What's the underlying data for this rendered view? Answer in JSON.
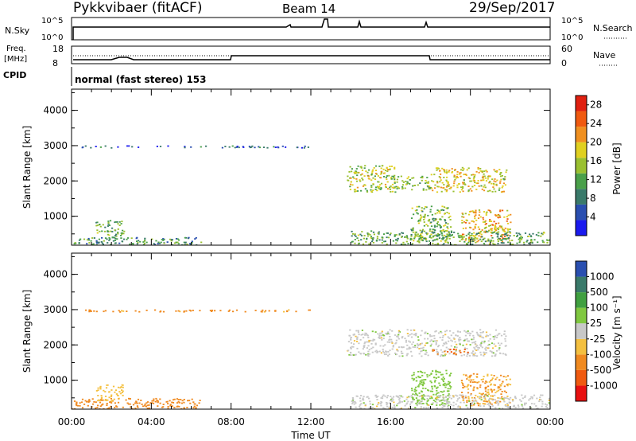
{
  "header": {
    "title": "Pykkvibaer (fitACF)",
    "beam": "Beam 14",
    "date": "29/Sep/2017"
  },
  "top_panels": {
    "nsky_label": "N.Sky",
    "nsearch_label": "N.Search",
    "nsky_ticks": [
      "10^5",
      "10^0"
    ],
    "nsky_right_ticks": [
      "10^5",
      "10^0"
    ],
    "freq_label": "Freq.",
    "freq_unit": "[MHz]",
    "freq_ticks": [
      "18",
      "8"
    ],
    "nave_label": "Nave",
    "nave_ticks": [
      "60",
      "0"
    ],
    "cpid_label": "CPID",
    "cpid_text": "normal (fast stereo) 153"
  },
  "colors": {
    "power": [
      "#1a1aee",
      "#2a4fb0",
      "#3a7a6a",
      "#4aa04a",
      "#9ac030",
      "#e0d020",
      "#f09020",
      "#f05a10",
      "#e02010"
    ],
    "velocity": [
      "#e81010",
      "#f05a10",
      "#f08a20",
      "#f4c040",
      "#c8c8c8",
      "#80c840",
      "#40a040",
      "#3a7a6a",
      "#2a4fb0"
    ]
  },
  "chart_data": [
    {
      "type": "heatmap",
      "quantity": "Power",
      "ylabel": "Slant Range [km]",
      "x_range_ut_hours": [
        0,
        24
      ],
      "ylim": [
        180,
        4600
      ],
      "yticks": [
        "1000",
        "2000",
        "3000",
        "4000"
      ],
      "colorbar": {
        "label": "Power [dB]",
        "ticks": [
          "4",
          "8",
          "12",
          "16",
          "20",
          "24",
          "28"
        ],
        "range": [
          0,
          30
        ]
      },
      "regions": [
        {
          "t0": 0.0,
          "t1": 6.5,
          "r0": 200,
          "r1": 420,
          "value": 10
        },
        {
          "t0": 1.2,
          "t1": 2.6,
          "r0": 400,
          "r1": 900,
          "value": 12
        },
        {
          "t0": 0.5,
          "t1": 12.0,
          "r0": 2950,
          "r1": 3010,
          "value": 6
        },
        {
          "t0": 13.8,
          "t1": 16.2,
          "r0": 1700,
          "r1": 2450,
          "value": 16
        },
        {
          "t0": 16.0,
          "t1": 18.0,
          "r0": 1750,
          "r1": 2150,
          "value": 14
        },
        {
          "t0": 18.0,
          "t1": 21.8,
          "r0": 1700,
          "r1": 2400,
          "value": 18
        },
        {
          "t0": 17.0,
          "t1": 19.0,
          "r0": 300,
          "r1": 1300,
          "value": 14
        },
        {
          "t0": 19.5,
          "t1": 22.0,
          "r0": 300,
          "r1": 1200,
          "value": 20
        },
        {
          "t0": 14.0,
          "t1": 24.0,
          "r0": 200,
          "r1": 600,
          "value": 12
        }
      ]
    },
    {
      "type": "heatmap",
      "quantity": "Velocity",
      "ylabel": "Slant Range [km]",
      "xlabel": "Time UT",
      "x_range_ut_hours": [
        0,
        24
      ],
      "xticks": [
        "00:00",
        "04:00",
        "08:00",
        "12:00",
        "16:00",
        "20:00",
        "00:00"
      ],
      "ylim": [
        180,
        4600
      ],
      "yticks": [
        "1000",
        "2000",
        "3000",
        "4000"
      ],
      "colorbar": {
        "label": "Velocity [m s⁻¹]",
        "ticks": [
          "-1000",
          "-500",
          "-100",
          "-25",
          "25",
          "100",
          "500",
          "1000"
        ]
      },
      "regions": [
        {
          "t0": 0.0,
          "t1": 6.5,
          "r0": 200,
          "r1": 500,
          "value": -200
        },
        {
          "t0": 1.2,
          "t1": 2.6,
          "r0": 400,
          "r1": 900,
          "value": -60
        },
        {
          "t0": 0.5,
          "t1": 12.0,
          "r0": 2950,
          "r1": 3010,
          "value": -150
        },
        {
          "t0": 13.8,
          "t1": 21.8,
          "r0": 1700,
          "r1": 2450,
          "value": 0
        },
        {
          "t0": 18.0,
          "t1": 20.0,
          "r0": 1750,
          "r1": 1900,
          "value": -600
        },
        {
          "t0": 17.0,
          "t1": 19.0,
          "r0": 300,
          "r1": 1300,
          "value": 60
        },
        {
          "t0": 19.5,
          "t1": 22.0,
          "r0": 300,
          "r1": 1200,
          "value": -100
        },
        {
          "t0": 14.0,
          "t1": 24.0,
          "r0": 200,
          "r1": 600,
          "value": 0
        }
      ]
    }
  ]
}
